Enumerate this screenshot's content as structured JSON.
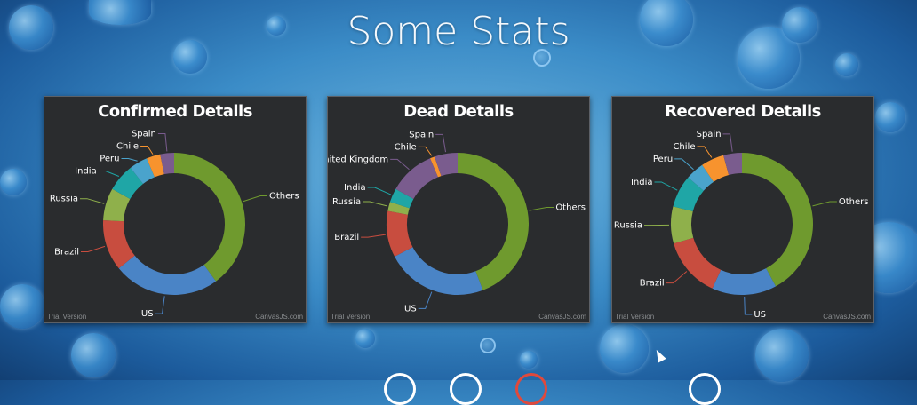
{
  "page": {
    "title": "Some Stats"
  },
  "footer": {
    "trial_label": "Trial Version",
    "credit_label": "CanvasJS.com"
  },
  "chart_data": [
    {
      "type": "pie",
      "title": "Confirmed Details",
      "style": "doughnut",
      "categories": [
        "Others",
        "US",
        "Brazil",
        "Russia",
        "India",
        "Peru",
        "Chile",
        "Spain"
      ],
      "values": [
        38,
        23,
        11,
        7,
        6,
        4,
        3,
        3
      ],
      "colors": [
        "#6f9a2e",
        "#4a84c6",
        "#c84d3f",
        "#8fb04b",
        "#1fa6a6",
        "#4aa3cc",
        "#f7932e",
        "#7a5c8e"
      ]
    },
    {
      "type": "pie",
      "title": "Dead Details",
      "style": "doughnut",
      "categories": [
        "Others",
        "US",
        "Brazil",
        "Russia",
        "India",
        "United Kingdom",
        "Chile",
        "Spain"
      ],
      "values": [
        42,
        22,
        10,
        2,
        3,
        10,
        1,
        5
      ],
      "colors": [
        "#6f9a2e",
        "#4a84c6",
        "#c84d3f",
        "#8fb04b",
        "#1fa6a6",
        "#7a5c8e",
        "#f7932e",
        "#7a5c8e"
      ]
    },
    {
      "type": "pie",
      "title": "Recovered Details",
      "style": "doughnut",
      "categories": [
        "Others",
        "US",
        "Brazil",
        "Russia",
        "India",
        "Peru",
        "Chile",
        "Spain"
      ],
      "values": [
        40,
        14,
        13,
        8,
        7,
        4,
        5,
        4
      ],
      "colors": [
        "#6f9a2e",
        "#4a84c6",
        "#c84d3f",
        "#8fb04b",
        "#1fa6a6",
        "#4aa3cc",
        "#f7932e",
        "#7a5c8e"
      ]
    }
  ]
}
